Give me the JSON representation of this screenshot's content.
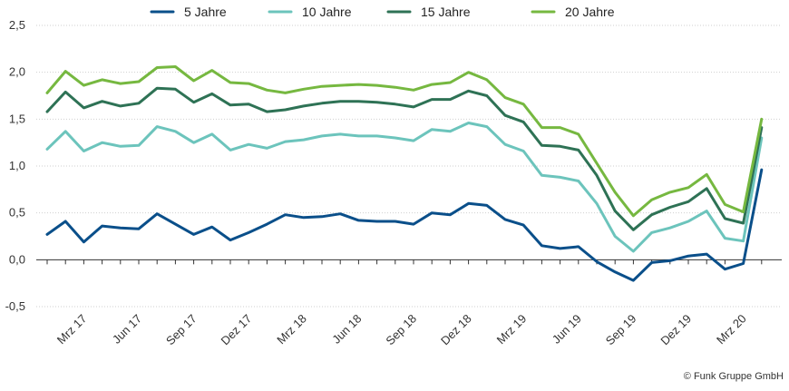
{
  "chart_data": {
    "type": "line",
    "x": [
      "Jan 17",
      "Feb 17",
      "Mrz 17",
      "Apr 17",
      "Mai 17",
      "Jun 17",
      "Jul 17",
      "Aug 17",
      "Sep 17",
      "Okt 17",
      "Nov 17",
      "Dez 17",
      "Jan 18",
      "Feb 18",
      "Mrz 18",
      "Apr 18",
      "Mai 18",
      "Jun 18",
      "Jul 18",
      "Aug 18",
      "Sep 18",
      "Okt 18",
      "Nov 18",
      "Dez 18",
      "Jan 19",
      "Feb 19",
      "Mrz 19",
      "Apr 19",
      "Mai 19",
      "Jun 19",
      "Jul 19",
      "Aug 19",
      "Sep 19",
      "Okt 19",
      "Nov 19",
      "Dez 19",
      "Jan 20",
      "Feb 20",
      "Mrz 20",
      "Apr 20"
    ],
    "tick_labels": [
      "Mrz 17",
      "Jun 17",
      "Sep 17",
      "Dez 17",
      "Mrz 18",
      "Jun 18",
      "Sep 18",
      "Dez 18",
      "Mrz 19",
      "Jun 19",
      "Sep 19",
      "Dez 19",
      "Mrz 20"
    ],
    "tick_indices": [
      2,
      5,
      8,
      11,
      14,
      17,
      20,
      23,
      26,
      29,
      32,
      35,
      38
    ],
    "yticks": [
      "2,5",
      "2,0",
      "1,5",
      "1,0",
      "0,5",
      "0,0",
      "-0,5"
    ],
    "ylim": [
      -0.5,
      2.5
    ],
    "series": [
      {
        "name": "5 Jahre",
        "color": "#0a4f8a",
        "values": [
          0.27,
          0.41,
          0.19,
          0.36,
          0.34,
          0.33,
          0.49,
          0.38,
          0.27,
          0.35,
          0.21,
          0.29,
          0.38,
          0.48,
          0.45,
          0.46,
          0.49,
          0.42,
          0.41,
          0.41,
          0.38,
          0.5,
          0.48,
          0.6,
          0.58,
          0.43,
          0.37,
          0.15,
          0.12,
          0.14,
          -0.02,
          -0.13,
          -0.22,
          -0.03,
          -0.01,
          0.04,
          0.06,
          -0.1,
          -0.04,
          0.96
        ]
      },
      {
        "name": "10 Jahre",
        "color": "#6cc4bc",
        "values": [
          1.18,
          1.37,
          1.16,
          1.25,
          1.21,
          1.22,
          1.42,
          1.37,
          1.25,
          1.34,
          1.17,
          1.23,
          1.19,
          1.26,
          1.28,
          1.32,
          1.34,
          1.32,
          1.32,
          1.3,
          1.27,
          1.39,
          1.37,
          1.46,
          1.42,
          1.23,
          1.16,
          0.9,
          0.88,
          0.84,
          0.6,
          0.25,
          0.09,
          0.29,
          0.34,
          0.41,
          0.52,
          0.23,
          0.2,
          1.3
        ]
      },
      {
        "name": "15 Jahre",
        "color": "#2e7255",
        "values": [
          1.58,
          1.79,
          1.62,
          1.69,
          1.64,
          1.67,
          1.83,
          1.82,
          1.68,
          1.77,
          1.65,
          1.66,
          1.58,
          1.6,
          1.64,
          1.67,
          1.69,
          1.69,
          1.68,
          1.66,
          1.63,
          1.71,
          1.71,
          1.8,
          1.75,
          1.54,
          1.47,
          1.22,
          1.21,
          1.17,
          0.9,
          0.52,
          0.32,
          0.48,
          0.56,
          0.62,
          0.76,
          0.44,
          0.39,
          1.41
        ]
      },
      {
        "name": "20 Jahre",
        "color": "#76b840",
        "values": [
          1.78,
          2.01,
          1.86,
          1.92,
          1.88,
          1.9,
          2.05,
          2.06,
          1.91,
          2.02,
          1.89,
          1.88,
          1.81,
          1.78,
          1.82,
          1.85,
          1.86,
          1.87,
          1.86,
          1.84,
          1.81,
          1.87,
          1.89,
          2.0,
          1.92,
          1.73,
          1.66,
          1.41,
          1.41,
          1.34,
          1.03,
          0.72,
          0.47,
          0.64,
          0.72,
          0.77,
          0.91,
          0.59,
          0.51,
          1.5
        ]
      }
    ],
    "credit": "© Funk Gruppe GmbH"
  }
}
